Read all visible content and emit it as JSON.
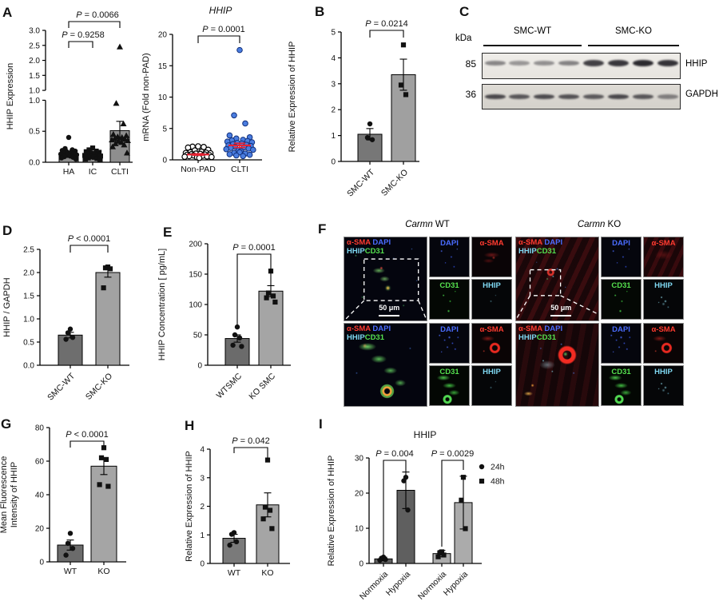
{
  "panels": {
    "A": "A",
    "B": "B",
    "C": "C",
    "D": "D",
    "E": "E",
    "F": "F",
    "G": "G",
    "H": "H",
    "I": "I"
  },
  "chart_data": [
    {
      "id": "a1",
      "type": "bar",
      "title": null,
      "ylabel": "HHIP Expression",
      "categories": [
        "HA",
        "IC",
        "CLTI"
      ],
      "bar_values": [
        0.13,
        0.1,
        0.51
      ],
      "bar_errors": [
        0.03,
        0.02,
        0.15
      ],
      "bar_colors": [
        "#8e8e8e",
        "#8e8e8e",
        "#8e8e8e"
      ],
      "markers": [
        "circle",
        "square",
        "triangle"
      ],
      "points": [
        [
          0.4,
          0.22,
          0.2,
          0.19,
          0.18,
          0.17,
          0.16,
          0.15,
          0.14,
          0.13,
          0.12,
          0.11,
          0.1,
          0.09,
          0.08,
          0.07,
          0.05
        ],
        [
          0.23,
          0.2,
          0.18,
          0.17,
          0.16,
          0.15,
          0.14,
          0.13,
          0.12,
          0.11,
          0.1,
          0.09,
          0.08,
          0.07,
          0.06,
          0.05,
          0.04
        ],
        [
          2.45,
          0.95,
          0.62,
          0.45,
          0.43,
          0.41,
          0.4,
          0.38,
          0.37,
          0.36,
          0.35,
          0.34,
          0.32,
          0.3,
          0.28,
          0.25,
          0.15
        ]
      ],
      "segments": [
        {
          "v0": 0,
          "v1": 1,
          "f0": 0,
          "f1": 0.47
        },
        {
          "v0": 1,
          "v1": 3,
          "f0": 0.545,
          "f1": 1
        }
      ],
      "ticks": [
        {
          "v": 0,
          "label": "0.0",
          "seg": 0
        },
        {
          "v": 0.5,
          "label": "0.5",
          "seg": 0
        },
        {
          "v": 1,
          "label": "1.0",
          "seg": 0
        },
        {
          "v": 1,
          "label": "1.0",
          "seg": 1
        },
        {
          "v": 1.5,
          "label": "1.5",
          "seg": 1
        },
        {
          "v": 2,
          "label": "2.0",
          "seg": 1
        },
        {
          "v": 2.5,
          "label": "2.5",
          "seg": 1
        },
        {
          "v": 3,
          "label": "3.0",
          "seg": 1
        }
      ],
      "ylim": [
        0,
        3
      ],
      "p_brackets": [
        {
          "from": 0,
          "to": 1,
          "label": "P = 0.9258"
        },
        {
          "from": 0,
          "to": 2,
          "label": "P = 0.0066"
        }
      ]
    },
    {
      "id": "a2",
      "type": "scatter",
      "title": {
        "text": "HHIP",
        "italic": true
      },
      "ylabel": "mRNA (Fold non-PAD)",
      "categories": [
        "Non-PAD",
        "CLTI"
      ],
      "point_styles": [
        "circle-open",
        "circle-blue"
      ],
      "point_fill": "#4a7de0",
      "mean_color": "#e62333",
      "points": [
        [
          2.15,
          2.1,
          2.05,
          1.95,
          1.6,
          1.5,
          1.3,
          1.2,
          1.15,
          1.1,
          1.05,
          1.0,
          0.95,
          0.9,
          0.85,
          0.8,
          0.75,
          0.7,
          0.65,
          0.6,
          0.55,
          0.5,
          0.45,
          0.4,
          0.3
        ],
        [
          17.5,
          7.1,
          5.8,
          3.9,
          3.6,
          3.4,
          3.2,
          3.1,
          3.0,
          2.9,
          2.8,
          2.7,
          2.6,
          2.5,
          2.4,
          2.3,
          2.2,
          2.1,
          2.0,
          1.9,
          1.8,
          1.7,
          1.6,
          1.5,
          1.4,
          1.2,
          1.1,
          1.0,
          0.9,
          0.8,
          0.7,
          0.6
        ]
      ],
      "mean": [
        0.85,
        2.3
      ],
      "sem": [
        0.12,
        0.35
      ],
      "ticks": [
        {
          "v": 0,
          "label": "0"
        },
        {
          "v": 5,
          "label": "5"
        },
        {
          "v": 10,
          "label": "10"
        },
        {
          "v": 15,
          "label": "15"
        },
        {
          "v": 20,
          "label": "20"
        }
      ],
      "ylim": [
        0,
        20
      ],
      "p_brackets": [
        {
          "from": 0,
          "to": 1,
          "label": "P = 0.0001"
        }
      ]
    },
    {
      "id": "b",
      "type": "bar",
      "title": null,
      "ylabel": "Relative Expression of HHIP",
      "categories": [
        "SMC-WT",
        "SMC-KO"
      ],
      "bar_values": [
        1.05,
        3.35
      ],
      "bar_errors": [
        0.22,
        0.6
      ],
      "bar_colors": [
        "#777777",
        "#a0a0a0"
      ],
      "markers": [
        "circle",
        "square"
      ],
      "points": [
        [
          1.45,
          0.92,
          0.84
        ],
        [
          4.5,
          2.95,
          2.58
        ]
      ],
      "ticks": [
        {
          "v": 0,
          "label": "0"
        },
        {
          "v": 1,
          "label": "1"
        },
        {
          "v": 2,
          "label": "2"
        },
        {
          "v": 3,
          "label": "3"
        },
        {
          "v": 4,
          "label": "4"
        },
        {
          "v": 5,
          "label": "5"
        }
      ],
      "ylim": [
        0,
        5
      ],
      "p_brackets": [
        {
          "from": 0,
          "to": 1,
          "label": "P = 0.0214"
        }
      ]
    },
    {
      "id": "d",
      "type": "bar",
      "title": null,
      "ylabel": "HHIP / GAPDH",
      "categories": [
        "SMC-WT",
        "SMC-KO"
      ],
      "bar_values": [
        0.65,
        2.0
      ],
      "bar_errors": [
        0.06,
        0.1
      ],
      "bar_colors": [
        "#6e6e6e",
        "#a2a2a2"
      ],
      "markers": [
        "circle",
        "square"
      ],
      "points": [
        [
          0.78,
          0.7,
          0.6,
          0.56
        ],
        [
          2.12,
          2.1,
          2.08,
          1.67
        ]
      ],
      "ticks": [
        {
          "v": 0,
          "label": "0.0"
        },
        {
          "v": 0.5,
          "label": "0.5"
        },
        {
          "v": 1,
          "label": "1.0"
        },
        {
          "v": 1.5,
          "label": "1.5"
        },
        {
          "v": 2,
          "label": "2.0"
        },
        {
          "v": 2.5,
          "label": "2.5"
        }
      ],
      "ylim": [
        0,
        2.5
      ],
      "p_brackets": [
        {
          "from": 0,
          "to": 1,
          "label": "P < 0.0001"
        }
      ]
    },
    {
      "id": "e",
      "type": "bar",
      "title": null,
      "ylabel": "HHIP Concentration [ pg/mL]",
      "categories": [
        "WTSMC",
        "KO SMC"
      ],
      "bar_values": [
        44,
        122
      ],
      "bar_errors": [
        6,
        9
      ],
      "bar_colors": [
        "#6b6b6b",
        "#a5a5a5"
      ],
      "markers": [
        "circle",
        "square"
      ],
      "points": [
        [
          63,
          50,
          45,
          33,
          31
        ],
        [
          155,
          119,
          114,
          111,
          104
        ]
      ],
      "ticks": [
        {
          "v": 0,
          "label": "0"
        },
        {
          "v": 50,
          "label": "50"
        },
        {
          "v": 100,
          "label": "100"
        },
        {
          "v": 150,
          "label": "150"
        },
        {
          "v": 200,
          "label": "200"
        }
      ],
      "ylim": [
        0,
        200
      ],
      "p_brackets": [
        {
          "from": 0,
          "to": 1,
          "label": "P = 0.0001"
        }
      ]
    },
    {
      "id": "g",
      "type": "bar",
      "title": null,
      "ylabel": [
        "Mean Fluorescence",
        "Intensity of HHIP"
      ],
      "categories": [
        "WT",
        "KO"
      ],
      "bar_values": [
        10,
        57
      ],
      "bar_errors": [
        3,
        5
      ],
      "bar_colors": [
        "#6b6b6b",
        "#a5a5a5"
      ],
      "markers": [
        "circle",
        "square"
      ],
      "points": [
        [
          17,
          11,
          8,
          4
        ],
        [
          68,
          62,
          61,
          46,
          45
        ]
      ],
      "ticks": [
        {
          "v": 0,
          "label": "0"
        },
        {
          "v": 20,
          "label": "20"
        },
        {
          "v": 40,
          "label": "40"
        },
        {
          "v": 60,
          "label": "60"
        },
        {
          "v": 80,
          "label": "80"
        }
      ],
      "ylim": [
        0,
        80
      ],
      "p_brackets": [
        {
          "from": 0,
          "to": 1,
          "label": "P < 0.0001"
        }
      ]
    },
    {
      "id": "h",
      "type": "bar",
      "title": null,
      "ylabel": "Relative Expression of HHIP",
      "categories": [
        "WT",
        "KO"
      ],
      "bar_values": [
        0.88,
        2.05
      ],
      "bar_errors": [
        0.14,
        0.42
      ],
      "bar_colors": [
        "#7a7a7a",
        "#a5a5a5"
      ],
      "markers": [
        "circle",
        "square"
      ],
      "points": [
        [
          1.08,
          1.02,
          0.76,
          0.64
        ],
        [
          3.62,
          1.97,
          1.86,
          1.56,
          1.22
        ]
      ],
      "ticks": [
        {
          "v": 0,
          "label": "0"
        },
        {
          "v": 1,
          "label": "1"
        },
        {
          "v": 2,
          "label": "2"
        },
        {
          "v": 3,
          "label": "3"
        },
        {
          "v": 4,
          "label": "4"
        }
      ],
      "ylim": [
        0,
        4
      ],
      "p_brackets": [
        {
          "from": 0,
          "to": 1,
          "label": "P = 0.042"
        }
      ]
    },
    {
      "id": "i",
      "type": "bar",
      "title": {
        "text": "HHIP",
        "italic": false
      },
      "ylabel": "Relative Expression of HHIP",
      "categories": [
        "Normoxia",
        "Hypoxia",
        "Normoxia",
        "Hypoxia"
      ],
      "bar_values": [
        1.3,
        20.8,
        2.8,
        17.3
      ],
      "bar_errors": [
        0.5,
        5.2,
        0.9,
        7.5
      ],
      "bar_colors": [
        "#5f5f5f",
        "#5f5f5f",
        "#ababab",
        "#ababab"
      ],
      "markers": [
        "circle",
        "circle",
        "square",
        "square"
      ],
      "points": [
        [
          1.8,
          1.5,
          1.1,
          0.9
        ],
        [
          24.5,
          23.5,
          15.2
        ],
        [
          3.3,
          3.0,
          2.4,
          1.9
        ],
        [
          24.5,
          18.0,
          9.9
        ]
      ],
      "ticks": [
        {
          "v": 0,
          "label": "0"
        },
        {
          "v": 10,
          "label": "10"
        },
        {
          "v": 20,
          "label": "20"
        },
        {
          "v": 30,
          "label": "30"
        }
      ],
      "ylim": [
        0,
        30
      ],
      "legend": [
        {
          "marker": "circle",
          "label": "24h"
        },
        {
          "marker": "square",
          "label": "48h"
        }
      ],
      "p_brackets": [
        {
          "from": 0,
          "to": 1,
          "label": "P = 0.004"
        },
        {
          "from": 2,
          "to": 3,
          "label": "P = 0.0029"
        }
      ]
    }
  ],
  "western_blot": {
    "label_kda": "kDa",
    "marker_85": "85",
    "marker_36": "36",
    "group_wt": "SMC-WT",
    "group_ko": "SMC-KO",
    "target_hhip": "HHIP",
    "target_gapdh": "GAPDH",
    "hhip_bands": [
      0.5,
      0.42,
      0.45,
      0.52,
      0.85,
      0.9,
      0.97,
      0.92
    ],
    "gapdh_bands": [
      0.8,
      0.72,
      0.78,
      0.75,
      0.7,
      0.8,
      0.72,
      0.5
    ]
  },
  "panel_f": {
    "title_wt_italic": "Carmn",
    "title_wt_rest": " WT",
    "title_ko_italic": "Carmn",
    "title_ko_rest": " KO",
    "scale_bar": "50 μm",
    "label_colors": {
      "red": "#ff3b30",
      "blue": "#4a6cff",
      "green": "#55e04e",
      "cyan": "#7fd8f2"
    },
    "channel_labels": {
      "dapi": "DAPI",
      "asma": "α-SMA",
      "cd31": "CD31",
      "hhip": "HHIP"
    },
    "merge_line1": [
      {
        "t": "α-SMA",
        "c": "red"
      },
      {
        "t": " DAPI",
        "c": "blue"
      }
    ],
    "merge_line2": [
      {
        "t": "HHIP",
        "c": "cyan"
      },
      {
        "t": "CD31",
        "c": "green"
      }
    ]
  }
}
